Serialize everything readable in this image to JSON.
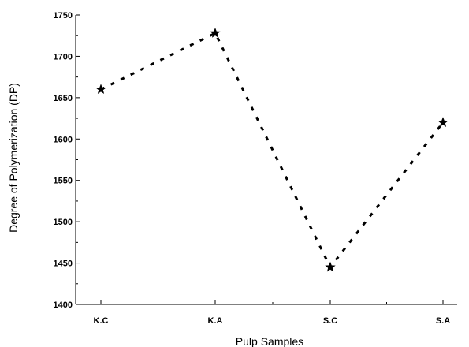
{
  "chart_data": {
    "type": "line",
    "xlabel": "Pulp Samples",
    "ylabel": "Degree of Polymerization (DP)",
    "categories": [
      "K.C",
      "K.A",
      "S.C",
      "S.A"
    ],
    "series": [
      {
        "values": [
          1660,
          1728,
          1445,
          1620
        ]
      }
    ],
    "ylim": [
      1400,
      1750
    ],
    "yticks": [
      "1400",
      "1450",
      "1500",
      "1550",
      "1600",
      "1650",
      "1700",
      "1750"
    ],
    "marker": "star",
    "line_style": "dashed",
    "color": "#000000",
    "grid": false
  }
}
